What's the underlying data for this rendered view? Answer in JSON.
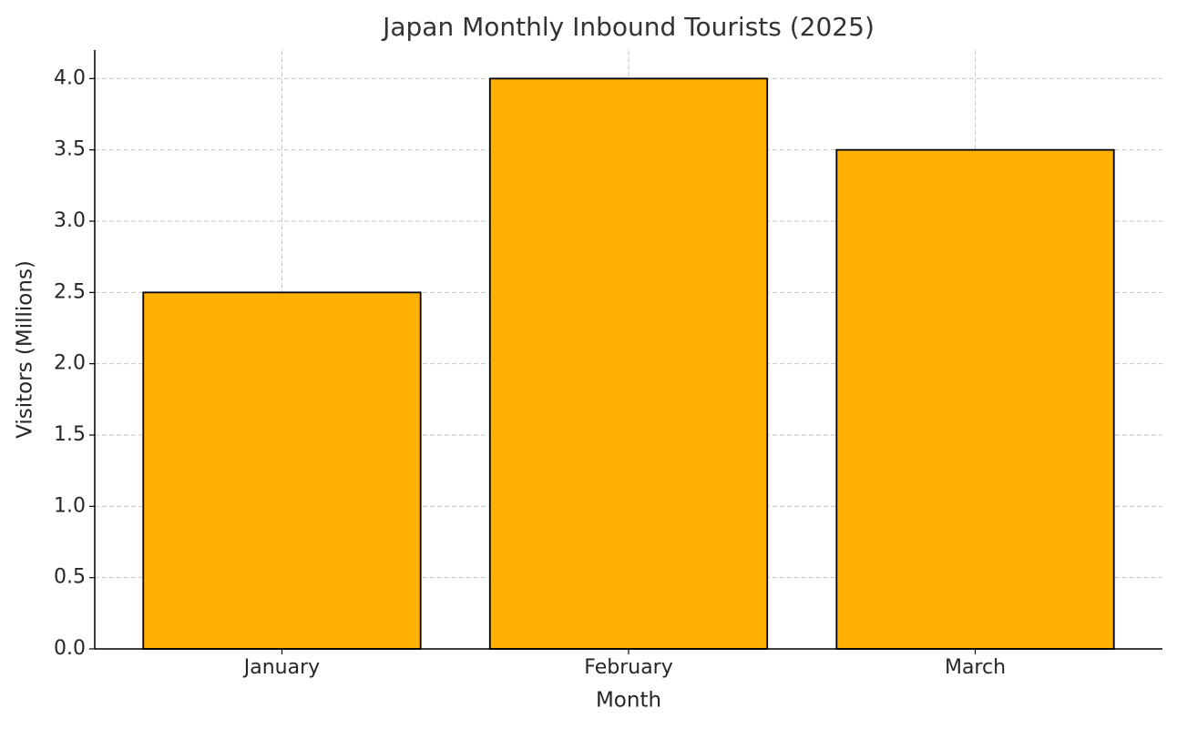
{
  "chart_data": {
    "type": "bar",
    "title": "Japan Monthly Inbound Tourists (2025)",
    "x_label": "Month",
    "y_label": "Visitors (Millions)",
    "categories": [
      "January",
      "February",
      "March"
    ],
    "values": [
      2.5,
      4.0,
      3.5
    ],
    "color": "#ffb000",
    "edge_color": "#000000",
    "ylim": [
      0,
      4.2
    ],
    "yticks": [
      {
        "value": 0,
        "label": "0.0"
      },
      0.5,
      {
        "value": 1,
        "label": "1.0"
      },
      1.5,
      {
        "value": 2,
        "label": "2.0"
      },
      2.5,
      {
        "value": 3,
        "label": "3.0"
      },
      3.5,
      {
        "value": 4,
        "label": "4.0"
      }
    ],
    "grid": true
  }
}
